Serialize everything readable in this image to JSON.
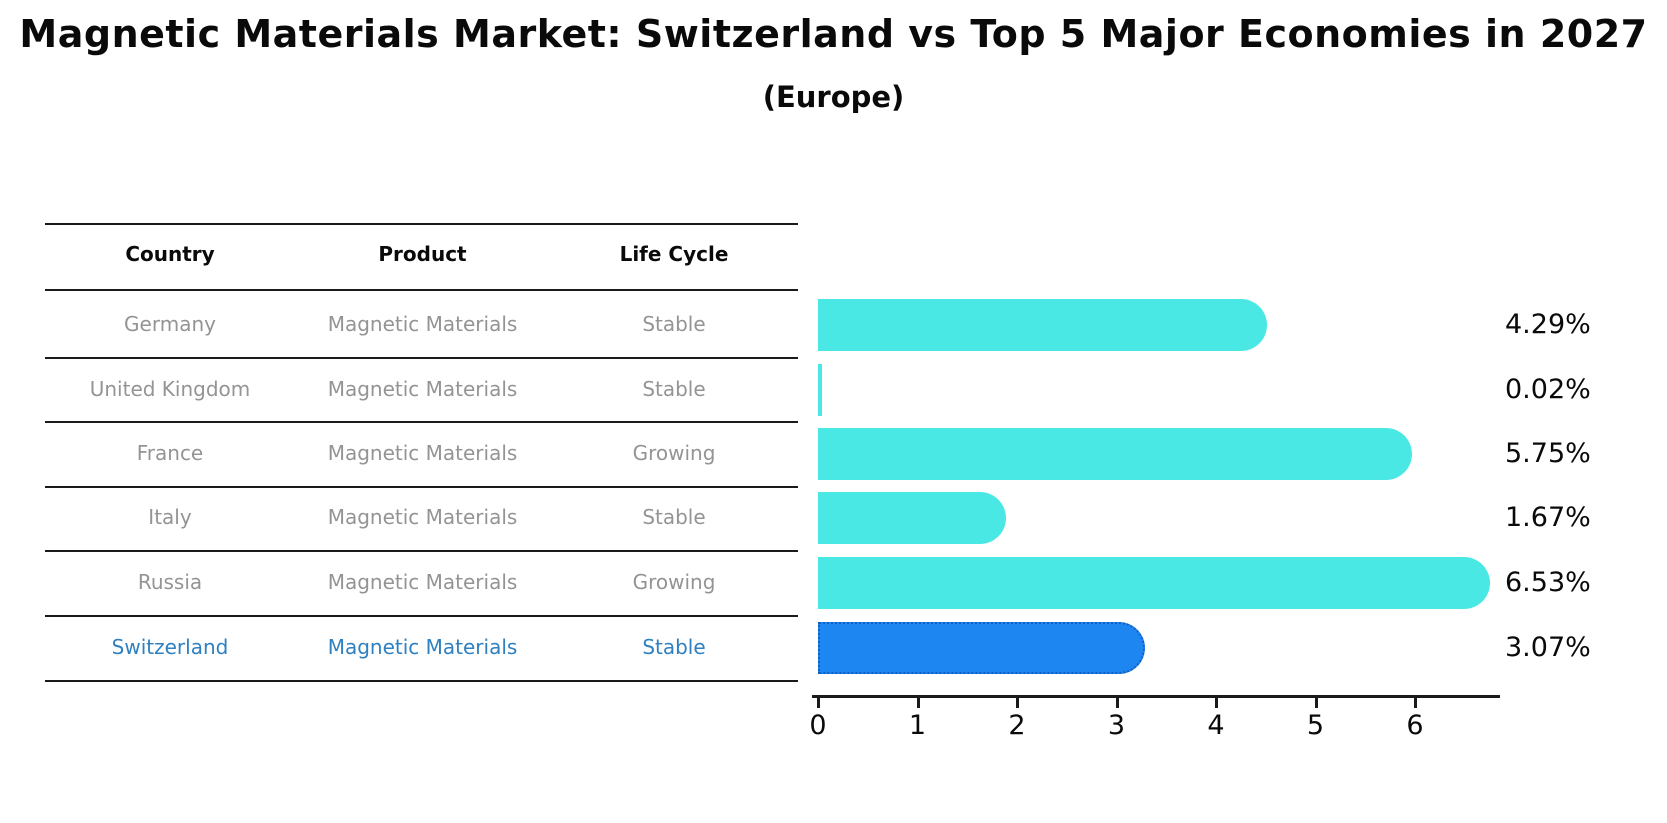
{
  "title": "Magnetic Materials Market: Switzerland vs Top 5 Major Economies in 2027",
  "subtitle": "(Europe)",
  "table": {
    "headers": [
      "Country",
      "Product",
      "Life Cycle"
    ],
    "rows": [
      {
        "country": "Germany",
        "product": "Magnetic Materials",
        "life_cycle": "Stable",
        "value_label": "4.29%",
        "highlight": false
      },
      {
        "country": "United Kingdom",
        "product": "Magnetic Materials",
        "life_cycle": "Stable",
        "value_label": "0.02%",
        "highlight": false
      },
      {
        "country": "France",
        "product": "Magnetic Materials",
        "life_cycle": "Growing",
        "value_label": "5.75%",
        "highlight": false
      },
      {
        "country": "Italy",
        "product": "Magnetic Materials",
        "life_cycle": "Stable",
        "value_label": "1.67%",
        "highlight": false
      },
      {
        "country": "Russia",
        "product": "Magnetic Materials",
        "life_cycle": "Growing",
        "value_label": "6.53%",
        "highlight": false
      },
      {
        "country": "Switzerland",
        "product": "Magnetic Materials",
        "life_cycle": "Stable",
        "value_label": "3.07%",
        "highlight": true
      }
    ]
  },
  "chart_data": {
    "type": "bar",
    "orientation": "horizontal",
    "categories": [
      "Germany",
      "United Kingdom",
      "France",
      "Italy",
      "Russia",
      "Switzerland"
    ],
    "values": [
      4.29,
      0.02,
      5.75,
      1.67,
      6.53,
      3.07
    ],
    "value_labels": [
      "4.29%",
      "0.02%",
      "5.75%",
      "1.67%",
      "6.53%",
      "3.07%"
    ],
    "title": "Magnetic Materials Market: Switzerland vs Top 5 Major Economies in 2027",
    "subtitle": "(Europe)",
    "xlabel": "",
    "ylabel": "",
    "x_ticks": [
      0,
      1,
      2,
      3,
      4,
      5,
      6
    ],
    "xlim": [
      0,
      6.86
    ],
    "grid": false,
    "legend": false,
    "highlight_category": "Switzerland",
    "unit_suffix": "%"
  },
  "colors": {
    "bar": "#4ae8e4",
    "highlight_bar": "#1e86f0",
    "highlight_border": "#0f5fc4",
    "row_text": "#949494",
    "highlight_text": "#2e80c0",
    "line": "#1a1a1a"
  }
}
